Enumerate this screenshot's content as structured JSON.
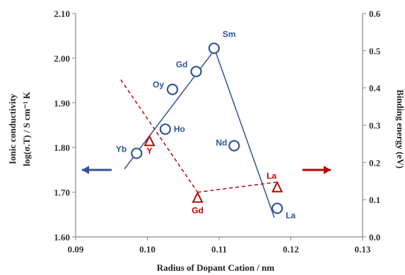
{
  "chart_data": {
    "type": "scatter",
    "xlabel": "Radius of Dopant Cation / nm",
    "x_range": [
      0.09,
      0.13
    ],
    "x_ticks": [
      "0.09",
      "0.10",
      "0.11",
      "0.12",
      "0.13"
    ],
    "y_left": {
      "label_line1": "Ionic conductivity",
      "label_line2": "log(σ.T) / S cm⁻¹ K",
      "range": [
        1.6,
        2.1
      ],
      "ticks": [
        "1.60",
        "1.70",
        "1.80",
        "1.90",
        "2.00",
        "2.10"
      ]
    },
    "y_right": {
      "label": "Binding energy (eV)",
      "range": [
        0.0,
        0.6
      ],
      "ticks": [
        "0.0",
        "0.1",
        "0.2",
        "0.3",
        "0.4",
        "0.5",
        "0.6"
      ]
    },
    "series": [
      {
        "axis": "left",
        "color": "#2f5597",
        "marker": "circle",
        "points": [
          {
            "label": "Yb",
            "x": 0.0985,
            "y": 1.787
          },
          {
            "label": "Ho",
            "x": 0.1025,
            "y": 1.841
          },
          {
            "label": "Oy",
            "x": 0.1035,
            "y": 1.93
          },
          {
            "label": "Gd",
            "x": 0.1068,
            "y": 1.97
          },
          {
            "label": "Sm",
            "x": 0.1093,
            "y": 2.022
          },
          {
            "label": "Nd",
            "x": 0.1121,
            "y": 1.804
          },
          {
            "label": "La",
            "x": 0.1181,
            "y": 1.664
          }
        ]
      },
      {
        "axis": "right",
        "color": "#c00000",
        "marker": "triangle",
        "points": [
          {
            "label": "Y",
            "x": 0.1003,
            "y": 0.257
          },
          {
            "label": "Gd",
            "x": 0.107,
            "y": 0.105
          },
          {
            "label": "La",
            "x": 0.1181,
            "y": 0.133
          }
        ]
      }
    ],
    "lines": [
      {
        "color": "#2f5597",
        "style": "solid",
        "axis": "left",
        "points": [
          [
            0.0968,
            1.752
          ],
          [
            0.1094,
            2.019
          ]
        ]
      },
      {
        "color": "#2f5597",
        "style": "solid",
        "axis": "left",
        "points": [
          [
            0.1094,
            2.019
          ],
          [
            0.1177,
            1.643
          ]
        ]
      },
      {
        "color": "#c00000",
        "style": "dashed",
        "axis": "right",
        "points": [
          [
            0.0963,
            0.422
          ],
          [
            0.107,
            0.12
          ]
        ]
      },
      {
        "color": "#c00000",
        "style": "dashed",
        "axis": "right",
        "points": [
          [
            0.107,
            0.12
          ],
          [
            0.118,
            0.147
          ]
        ]
      }
    ],
    "arrows": [
      {
        "color": "#2f5597",
        "direction": "left",
        "axis_side": "left"
      },
      {
        "color": "#c00000",
        "direction": "right",
        "axis_side": "right"
      }
    ],
    "grid": false
  }
}
